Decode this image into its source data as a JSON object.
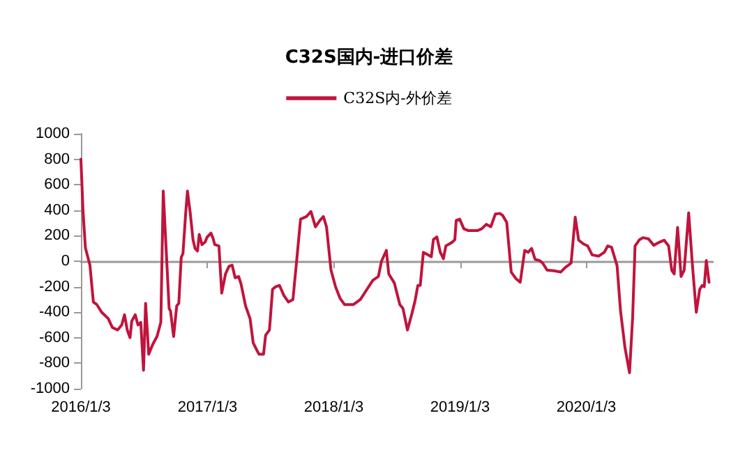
{
  "chart_data": {
    "type": "line",
    "title": "C32S国内-进口价差",
    "legend": "top",
    "x": [
      "2016-01-03",
      "2016-01-09",
      "2016-01-16",
      "2016-01-29",
      "2016-02-08",
      "2016-02-18",
      "2016-03-03",
      "2016-03-22",
      "2016-04-03",
      "2016-04-18",
      "2016-04-30",
      "2016-05-08",
      "2016-05-16",
      "2016-05-24",
      "2016-05-29",
      "2016-06-08",
      "2016-06-16",
      "2016-06-24",
      "2016-07-02",
      "2016-07-08",
      "2016-07-17",
      "2016-07-29",
      "2016-08-10",
      "2016-08-21",
      "2016-08-28",
      "2016-09-14",
      "2016-09-18",
      "2016-09-27",
      "2016-10-06",
      "2016-10-12",
      "2016-10-19",
      "2016-10-24",
      "2016-11-01",
      "2016-11-06",
      "2016-11-14",
      "2016-11-22",
      "2016-11-28",
      "2016-12-05",
      "2016-12-10",
      "2016-12-18",
      "2016-12-27",
      "2017-01-02",
      "2017-01-13",
      "2017-01-19",
      "2017-01-24",
      "2017-02-05",
      "2017-02-13",
      "2017-02-24",
      "2017-03-06",
      "2017-03-15",
      "2017-03-24",
      "2017-04-03",
      "2017-04-10",
      "2017-04-23",
      "2017-05-06",
      "2017-05-15",
      "2017-05-26",
      "2017-06-01",
      "2017-06-14",
      "2017-06-20",
      "2017-07-01",
      "2017-07-10",
      "2017-07-19",
      "2017-07-30",
      "2017-08-12",
      "2017-08-25",
      "2017-09-07",
      "2017-09-20",
      "2017-09-29",
      "2017-10-16",
      "2017-10-29",
      "2017-11-11",
      "2017-11-24",
      "2017-12-04",
      "2017-12-13",
      "2017-12-26",
      "2018-01-08",
      "2018-01-21",
      "2018-02-03",
      "2018-03-01",
      "2018-03-21",
      "2018-04-09",
      "2018-04-26",
      "2018-05-12",
      "2018-05-21",
      "2018-06-04",
      "2018-06-11",
      "2018-06-27",
      "2018-07-13",
      "2018-07-22",
      "2018-08-04",
      "2018-08-17",
      "2018-08-26",
      "2018-09-03",
      "2018-09-10",
      "2018-09-19",
      "2018-10-02",
      "2018-10-12",
      "2018-10-18",
      "2018-10-28",
      "2018-11-07",
      "2018-11-16",
      "2018-11-23",
      "2018-12-03",
      "2018-12-12",
      "2018-12-19",
      "2018-12-23",
      "2019-01-02",
      "2019-01-14",
      "2019-01-27",
      "2019-02-22",
      "2019-03-07",
      "2019-03-20",
      "2019-04-02",
      "2019-04-15",
      "2019-04-28",
      "2019-05-06",
      "2019-05-18",
      "2019-05-31",
      "2019-06-13",
      "2019-06-26",
      "2019-07-09",
      "2019-07-19",
      "2019-07-29",
      "2019-08-08",
      "2019-08-21",
      "2019-08-30",
      "2019-09-12",
      "2019-10-02",
      "2019-10-21",
      "2019-11-03",
      "2019-11-20",
      "2019-12-02",
      "2019-12-12",
      "2019-12-26",
      "2020-01-07",
      "2020-01-20",
      "2020-02-08",
      "2020-02-24",
      "2020-03-05",
      "2020-03-16",
      "2020-04-01",
      "2020-04-11",
      "2020-04-24",
      "2020-05-07",
      "2020-05-16",
      "2020-05-23",
      "2020-06-05",
      "2020-06-15",
      "2020-07-01",
      "2020-07-16",
      "2020-08-02",
      "2020-08-15",
      "2020-08-28",
      "2020-09-06",
      "2020-09-13",
      "2020-09-23",
      "2020-10-03",
      "2020-10-12",
      "2020-10-25",
      "2020-11-05",
      "2020-11-16",
      "2020-11-26",
      "2020-12-03",
      "2020-12-09",
      "2020-12-15",
      "2020-12-23"
    ],
    "series": [
      {
        "name": "C32S内-外价差",
        "color": "#c0143c",
        "values": [
          800,
          400,
          105,
          -30,
          -320,
          -340,
          -400,
          -450,
          -520,
          -540,
          -500,
          -420,
          -540,
          -600,
          -470,
          -420,
          -500,
          -480,
          -855,
          -330,
          -730,
          -650,
          -590,
          -480,
          550,
          -370,
          -390,
          -590,
          -350,
          -330,
          30,
          60,
          380,
          550,
          380,
          170,
          100,
          80,
          210,
          130,
          150,
          190,
          220,
          180,
          130,
          120,
          -250,
          -100,
          -40,
          -30,
          -130,
          -120,
          -180,
          -350,
          -450,
          -640,
          -700,
          -730,
          -730,
          -580,
          -540,
          -220,
          -200,
          -190,
          -270,
          -320,
          -300,
          70,
          330,
          350,
          390,
          270,
          320,
          350,
          270,
          -70,
          -200,
          -290,
          -340,
          -340,
          -300,
          -220,
          -150,
          -120,
          0,
          85,
          -100,
          -170,
          -340,
          -370,
          -540,
          -410,
          -310,
          -190,
          -190,
          70,
          50,
          35,
          170,
          190,
          70,
          20,
          120,
          135,
          150,
          170,
          320,
          330,
          255,
          240,
          240,
          255,
          290,
          270,
          370,
          375,
          360,
          305,
          -85,
          -135,
          -165,
          85,
          70,
          100,
          15,
          5,
          -15,
          -70,
          -75,
          -85,
          -50,
          -15,
          345,
          165,
          135,
          120,
          50,
          40,
          70,
          120,
          110,
          -35,
          -390,
          -680,
          -875,
          -440,
          120,
          170,
          185,
          175,
          125,
          150,
          165,
          120,
          -70,
          -100,
          265,
          -120,
          -70,
          380,
          -35,
          -400,
          -220,
          -190,
          -200,
          5,
          -165
        ]
      }
    ],
    "xlim": [
      "2016-01-03",
      "2021-01-03"
    ],
    "xticks": [
      {
        "value": "2016-01-03",
        "label": "2016/1/3"
      },
      {
        "value": "2017-01-03",
        "label": "2017/1/3"
      },
      {
        "value": "2018-01-03",
        "label": "2018/1/3"
      },
      {
        "value": "2019-01-03",
        "label": "2019/1/3"
      },
      {
        "value": "2020-01-03",
        "label": "2020/1/3"
      }
    ],
    "ylim": [
      -1000,
      1000
    ],
    "yticks": [
      -1000,
      -800,
      -600,
      -400,
      -200,
      0,
      200,
      400,
      600,
      800,
      1000
    ],
    "marker": "none",
    "line_style": "solid"
  }
}
